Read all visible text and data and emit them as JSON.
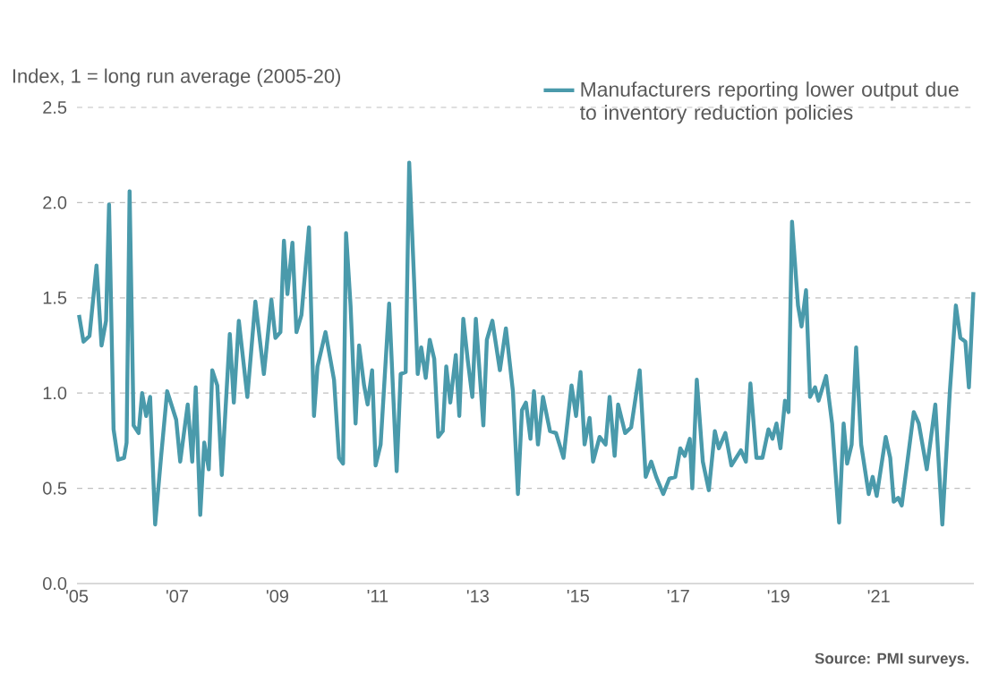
{
  "chart_data": {
    "type": "line",
    "ylabel": "Index, 1 = long run average (2005-20)",
    "annotations": [
      "Source: PMI surveys."
    ],
    "x": [
      2005.04,
      2005.13,
      2005.25,
      2005.39,
      2005.49,
      2005.58,
      2005.64,
      2005.73,
      2005.82,
      2005.94,
      2005.99,
      2006.05,
      2006.13,
      2006.23,
      2006.3,
      2006.38,
      2006.46,
      2006.56,
      2006.68,
      2006.8,
      2006.98,
      2007.06,
      2007.21,
      2007.3,
      2007.37,
      2007.46,
      2007.54,
      2007.63,
      2007.7,
      2007.8,
      2007.89,
      2008.05,
      2008.13,
      2008.23,
      2008.4,
      2008.56,
      2008.73,
      2008.88,
      2008.96,
      2009.06,
      2009.13,
      2009.2,
      2009.3,
      2009.38,
      2009.48,
      2009.63,
      2009.73,
      2009.8,
      2009.96,
      2010.13,
      2010.23,
      2010.31,
      2010.37,
      2010.46,
      2010.56,
      2010.63,
      2010.73,
      2010.8,
      2010.89,
      2010.96,
      2011.06,
      2011.23,
      2011.38,
      2011.46,
      2011.56,
      2011.63,
      2011.73,
      2011.8,
      2011.87,
      2011.96,
      2012.04,
      2012.13,
      2012.21,
      2012.3,
      2012.37,
      2012.45,
      2012.56,
      2012.63,
      2012.71,
      2012.8,
      2012.89,
      2012.96,
      2013.11,
      2013.18,
      2013.29,
      2013.44,
      2013.56,
      2013.7,
      2013.8,
      2013.88,
      2013.96,
      2014.05,
      2014.12,
      2014.2,
      2014.3,
      2014.44,
      2014.56,
      2014.71,
      2014.87,
      2014.96,
      2015.05,
      2015.13,
      2015.23,
      2015.3,
      2015.43,
      2015.55,
      2015.63,
      2015.73,
      2015.8,
      2015.94,
      2016.06,
      2016.23,
      2016.35,
      2016.46,
      2016.56,
      2016.7,
      2016.82,
      2016.94,
      2017.04,
      2017.13,
      2017.23,
      2017.28,
      2017.37,
      2017.49,
      2017.61,
      2017.73,
      2017.81,
      2017.94,
      2018.06,
      2018.25,
      2018.35,
      2018.44,
      2018.56,
      2018.68,
      2018.8,
      2018.88,
      2018.96,
      2019.04,
      2019.13,
      2019.2,
      2019.27,
      2019.39,
      2019.46,
      2019.55,
      2019.63,
      2019.73,
      2019.8,
      2019.95,
      2020.07,
      2020.21,
      2020.3,
      2020.37,
      2020.46,
      2020.55,
      2020.65,
      2020.8,
      2020.88,
      2020.96,
      2021.14,
      2021.23,
      2021.3,
      2021.39,
      2021.46,
      2021.7,
      2021.8,
      2021.96,
      2022.13,
      2022.27,
      2022.42,
      2022.54,
      2022.63,
      2022.73,
      2022.8,
      2022.89
    ],
    "series": [
      {
        "name": "Manufacturers reporting lower output due to inventory reduction policies",
        "color": "#4a9aab",
        "values": [
          1.41,
          1.27,
          1.3,
          1.67,
          1.25,
          1.38,
          1.99,
          0.81,
          0.65,
          0.66,
          0.74,
          2.06,
          0.83,
          0.79,
          1.0,
          0.88,
          0.98,
          0.31,
          0.67,
          1.01,
          0.86,
          0.64,
          0.94,
          0.64,
          1.03,
          0.36,
          0.74,
          0.6,
          1.12,
          1.04,
          0.57,
          1.31,
          0.95,
          1.38,
          0.98,
          1.48,
          1.1,
          1.49,
          1.29,
          1.32,
          1.8,
          1.52,
          1.79,
          1.32,
          1.41,
          1.87,
          0.88,
          1.14,
          1.32,
          1.07,
          0.66,
          0.63,
          1.84,
          1.46,
          0.84,
          1.25,
          1.04,
          0.94,
          1.12,
          0.62,
          0.73,
          1.47,
          0.59,
          1.1,
          1.11,
          2.21,
          1.58,
          1.1,
          1.24,
          1.08,
          1.28,
          1.18,
          0.77,
          0.8,
          1.14,
          0.95,
          1.2,
          0.88,
          1.39,
          1.17,
          0.98,
          1.39,
          0.83,
          1.28,
          1.38,
          1.12,
          1.34,
          1.01,
          0.47,
          0.91,
          0.95,
          0.76,
          1.01,
          0.73,
          0.98,
          0.8,
          0.79,
          0.66,
          1.04,
          0.88,
          1.11,
          0.73,
          0.87,
          0.64,
          0.77,
          0.73,
          0.98,
          0.67,
          0.94,
          0.79,
          0.82,
          1.12,
          0.56,
          0.64,
          0.56,
          0.47,
          0.55,
          0.56,
          0.71,
          0.67,
          0.76,
          0.5,
          1.07,
          0.64,
          0.49,
          0.8,
          0.71,
          0.79,
          0.62,
          0.7,
          0.64,
          1.05,
          0.66,
          0.66,
          0.81,
          0.76,
          0.84,
          0.71,
          0.96,
          0.9,
          1.9,
          1.46,
          1.35,
          1.54,
          0.98,
          1.03,
          0.96,
          1.09,
          0.84,
          0.32,
          0.84,
          0.63,
          0.73,
          1.24,
          0.73,
          0.47,
          0.56,
          0.46,
          0.77,
          0.66,
          0.43,
          0.45,
          0.41,
          0.9,
          0.84,
          0.6,
          0.94,
          0.31,
          1.01,
          1.46,
          1.29,
          1.27,
          1.03,
          1.53
        ]
      }
    ],
    "xlim": [
      2005,
      2022.9
    ],
    "xticks": [
      {
        "value": 2005,
        "label": "'05"
      },
      {
        "value": 2007,
        "label": "'07"
      },
      {
        "value": 2009,
        "label": "'09"
      },
      {
        "value": 2011,
        "label": "'11"
      },
      {
        "value": 2013,
        "label": "'13"
      },
      {
        "value": 2015,
        "label": "'15"
      },
      {
        "value": 2017,
        "label": "'17"
      },
      {
        "value": 2019,
        "label": "'19"
      },
      {
        "value": 2021,
        "label": "'21"
      }
    ],
    "ylim": [
      0,
      2.5
    ],
    "yticks": [
      {
        "value": 0,
        "label": "0.0"
      },
      {
        "value": 0.5,
        "label": "0.5"
      },
      {
        "value": 1,
        "label": "1.0"
      },
      {
        "value": 1.5,
        "label": "1.5"
      },
      {
        "value": 2,
        "label": "2.0"
      },
      {
        "value": 2.5,
        "label": "2.5"
      }
    ],
    "grid": "y",
    "legend": "top right"
  }
}
